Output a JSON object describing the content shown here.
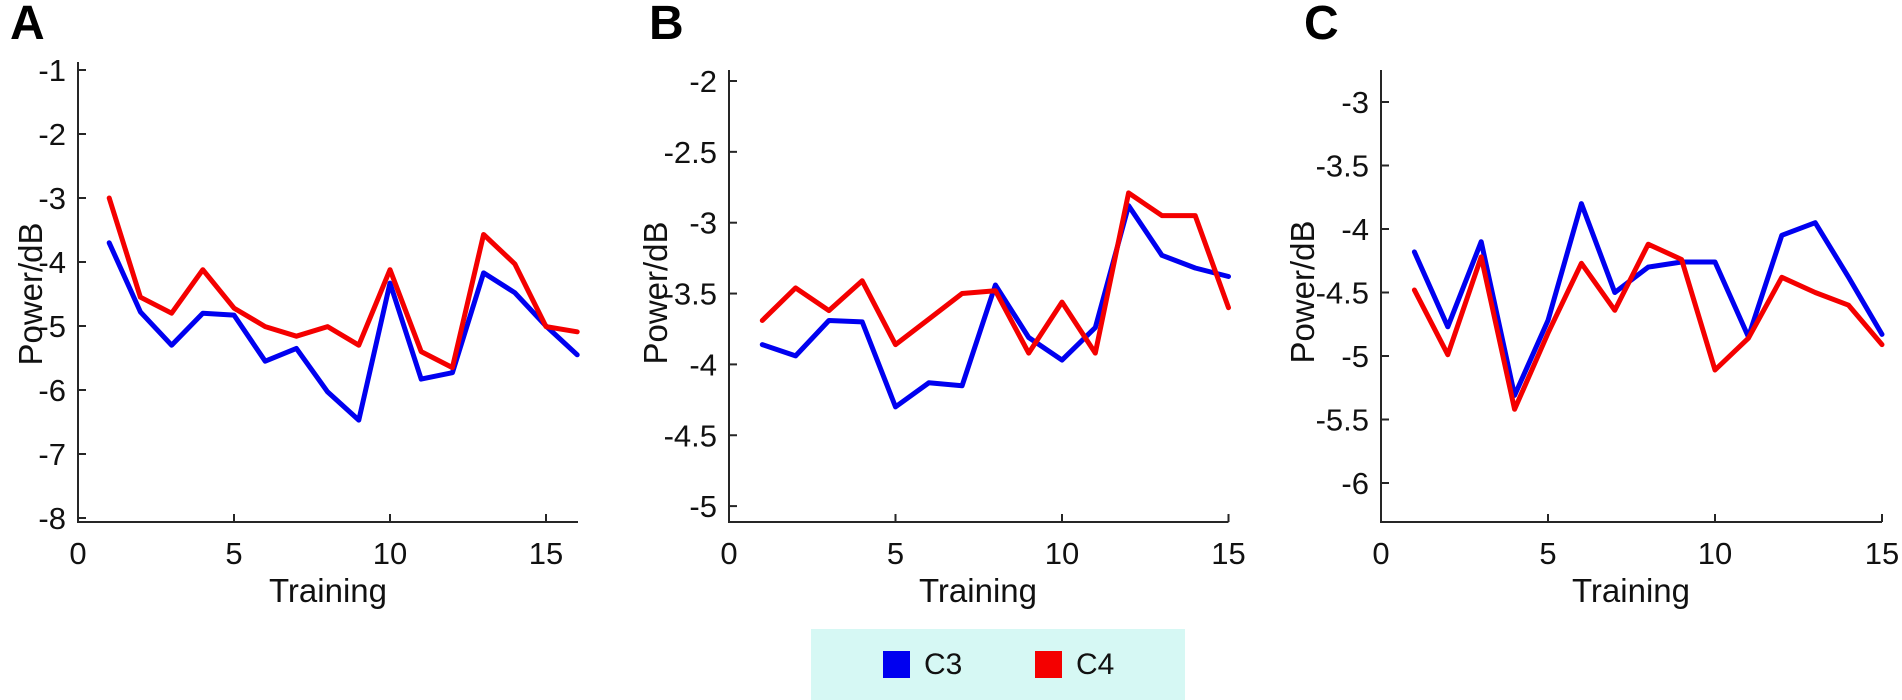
{
  "figure": {
    "xlabel": "Training",
    "ylabel": "Power/dB"
  },
  "legend": {
    "background": "#D6F8F4",
    "items": [
      {
        "label": "C3",
        "color": "#0000F0"
      },
      {
        "label": "C4",
        "color": "#F40000"
      }
    ]
  },
  "chart_data": [
    {
      "type": "line",
      "panel_label": "A",
      "xlabel": "Training",
      "ylabel": "Power/dB",
      "x": [
        1,
        2,
        3,
        4,
        5,
        6,
        7,
        8,
        9,
        10,
        11,
        12,
        13,
        14,
        15,
        16
      ],
      "xticks": [
        0,
        5,
        10,
        15
      ],
      "yticks": [
        -1,
        -2,
        -3,
        -4,
        -5,
        -6,
        -7,
        -8
      ],
      "xlim": [
        0,
        16.1
      ],
      "ylim": [
        -8,
        -1
      ],
      "grid": false,
      "series": [
        {
          "name": "C3",
          "color": "#0000F0",
          "values": [
            -3.7,
            -4.78,
            -5.3,
            -4.8,
            -4.83,
            -5.55,
            -5.35,
            -6.03,
            -6.47,
            -4.33,
            -5.83,
            -5.73,
            -4.17,
            -4.48,
            -5.0,
            -5.45
          ]
        },
        {
          "name": "C4",
          "color": "#F40000",
          "values": [
            -3.0,
            -4.55,
            -4.8,
            -4.12,
            -4.72,
            -5.01,
            -5.16,
            -5.01,
            -5.3,
            -4.12,
            -5.4,
            -5.65,
            -3.57,
            -4.03,
            -5.01,
            -5.09
          ]
        }
      ]
    },
    {
      "type": "line",
      "panel_label": "B",
      "xlabel": "Training",
      "ylabel": "Power/dB",
      "x": [
        1,
        2,
        3,
        4,
        5,
        6,
        7,
        8,
        9,
        10,
        11,
        12,
        13,
        14,
        15
      ],
      "xticks": [
        0,
        5,
        10,
        15
      ],
      "yticks": [
        -2,
        -2.5,
        -3,
        -3.5,
        -4,
        -4.5,
        -5
      ],
      "xlim": [
        0,
        15
      ],
      "ylim": [
        -5,
        -2
      ],
      "grid": false,
      "series": [
        {
          "name": "C3",
          "color": "#0000F0",
          "values": [
            -3.86,
            -3.94,
            -3.69,
            -3.7,
            -4.3,
            -4.13,
            -4.15,
            -3.44,
            -3.81,
            -3.97,
            -3.74,
            -2.88,
            -3.23,
            -3.32,
            -3.38
          ]
        },
        {
          "name": "C4",
          "color": "#F40000",
          "values": [
            -3.69,
            -3.46,
            -3.62,
            -3.41,
            -3.86,
            -3.68,
            -3.5,
            -3.48,
            -3.92,
            -3.56,
            -3.92,
            -2.79,
            -2.95,
            -2.95,
            -3.6
          ]
        }
      ]
    },
    {
      "type": "line",
      "panel_label": "C",
      "xlabel": "Training",
      "ylabel": "Power/dB",
      "x": [
        1,
        2,
        3,
        4,
        5,
        6,
        7,
        8,
        9,
        10,
        11,
        12,
        13,
        14,
        15
      ],
      "xticks": [
        0,
        5,
        10,
        15
      ],
      "yticks": [
        -3,
        -3.5,
        -4,
        -4.5,
        -5,
        -5.5,
        -6
      ],
      "xlim": [
        0,
        15
      ],
      "ylim": [
        -6,
        -3
      ],
      "grid": false,
      "series": [
        {
          "name": "C3",
          "color": "#0000F0",
          "values": [
            -4.18,
            -4.77,
            -4.1,
            -5.31,
            -4.72,
            -3.8,
            -4.5,
            -4.3,
            -4.26,
            -4.26,
            -4.85,
            -4.05,
            -3.95,
            -4.38,
            -4.83
          ]
        },
        {
          "name": "C4",
          "color": "#F40000",
          "values": [
            -4.48,
            -4.99,
            -4.22,
            -5.42,
            -4.82,
            -4.27,
            -4.64,
            -4.12,
            -4.24,
            -5.11,
            -4.86,
            -4.38,
            -4.5,
            -4.6,
            -4.91
          ]
        }
      ]
    }
  ]
}
